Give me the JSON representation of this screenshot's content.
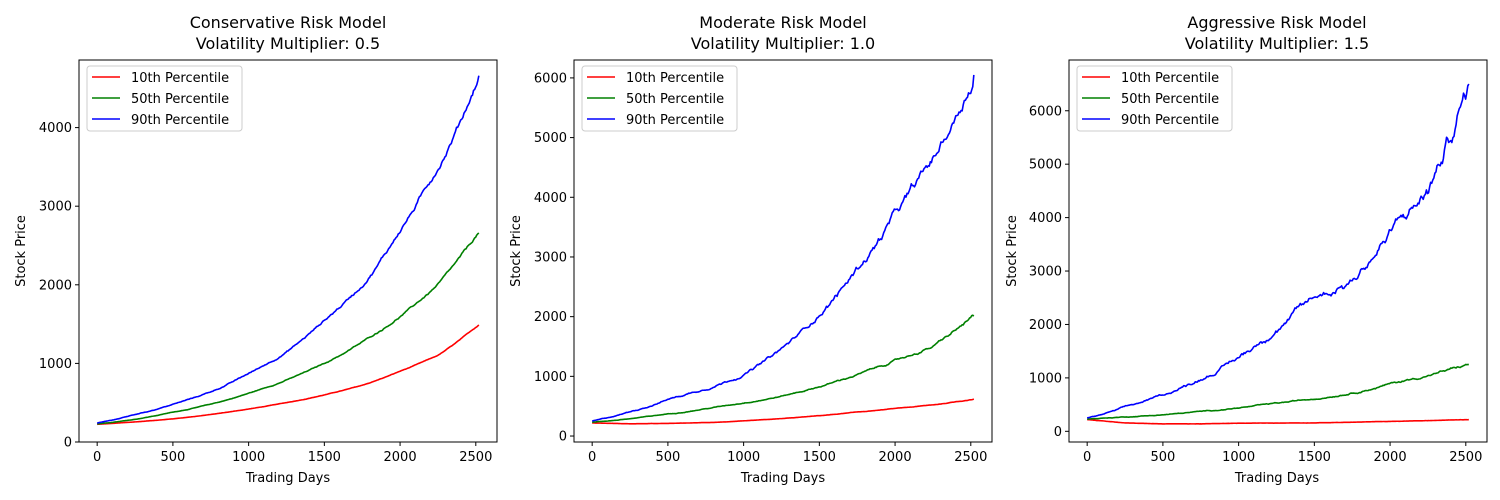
{
  "figure": {
    "x_label": "Trading Days",
    "y_label": "Stock Price"
  },
  "series_colors": {
    "p10": "#ff0000",
    "p50": "#008000",
    "p90": "#0000ff"
  },
  "chart_data": [
    {
      "type": "line",
      "title_line1": "Conservative Risk Model",
      "title_line2": "Volatility Multiplier: 0.5",
      "xlabel": "Trading Days",
      "ylabel": "Stock Price",
      "xlim": [
        -120,
        2640
      ],
      "ylim": [
        0,
        4860
      ],
      "xticks": [
        0,
        500,
        1000,
        1500,
        2000,
        2500
      ],
      "yticks": [
        0,
        1000,
        2000,
        3000,
        4000
      ],
      "noise": 0.5,
      "legend_position": "upper-left",
      "series": [
        {
          "name": "10th Percentile",
          "color": "#ff0000",
          "x": [
            0,
            250,
            500,
            750,
            1000,
            1250,
            1500,
            1750,
            2000,
            2250,
            2520
          ],
          "values": [
            225,
            255,
            295,
            350,
            420,
            500,
            600,
            720,
            900,
            1100,
            1490
          ]
        },
        {
          "name": "50th Percentile",
          "color": "#008000",
          "x": [
            0,
            250,
            500,
            750,
            1000,
            1250,
            1500,
            1750,
            2000,
            2250,
            2520
          ],
          "values": [
            230,
            290,
            380,
            480,
            620,
            790,
            1000,
            1270,
            1600,
            2000,
            2660
          ]
        },
        {
          "name": "90th Percentile",
          "color": "#0000ff",
          "x": [
            0,
            250,
            500,
            750,
            1000,
            1250,
            1500,
            1750,
            2000,
            2250,
            2520
          ],
          "values": [
            240,
            350,
            480,
            640,
            870,
            1150,
            1550,
            2000,
            2700,
            3500,
            4660
          ]
        }
      ]
    },
    {
      "type": "line",
      "title_line1": "Moderate Risk Model",
      "title_line2": "Volatility Multiplier: 1.0",
      "xlabel": "Trading Days",
      "ylabel": "Stock Price",
      "xlim": [
        -120,
        2640
      ],
      "ylim": [
        -100,
        6300
      ],
      "xticks": [
        0,
        500,
        1000,
        1500,
        2000,
        2500
      ],
      "yticks": [
        0,
        1000,
        2000,
        3000,
        4000,
        5000,
        6000
      ],
      "noise": 1.0,
      "legend_position": "upper-left",
      "series": [
        {
          "name": "10th Percentile",
          "color": "#ff0000",
          "x": [
            0,
            250,
            500,
            750,
            1000,
            1250,
            1500,
            1750,
            2000,
            2250,
            2520
          ],
          "values": [
            220,
            205,
            210,
            225,
            250,
            290,
            340,
            400,
            460,
            520,
            620
          ]
        },
        {
          "name": "50th Percentile",
          "color": "#008000",
          "x": [
            0,
            250,
            500,
            750,
            1000,
            1250,
            1500,
            1750,
            2000,
            2250,
            2520
          ],
          "values": [
            230,
            290,
            370,
            460,
            560,
            670,
            830,
            1030,
            1260,
            1500,
            2010
          ]
        },
        {
          "name": "90th Percentile",
          "color": "#0000ff",
          "x": [
            0,
            250,
            500,
            750,
            1000,
            1250,
            1500,
            1750,
            2000,
            2250,
            2520
          ],
          "values": [
            250,
            410,
            620,
            800,
            1040,
            1450,
            2050,
            2800,
            3700,
            4600,
            6050
          ]
        }
      ]
    },
    {
      "type": "line",
      "title_line1": "Aggressive Risk Model",
      "title_line2": "Volatility Multiplier: 1.5",
      "xlabel": "Trading Days",
      "ylabel": "Stock Price",
      "xlim": [
        -120,
        2640
      ],
      "ylim": [
        -200,
        6950
      ],
      "xticks": [
        0,
        500,
        1000,
        1500,
        2000,
        2500
      ],
      "yticks": [
        0,
        1000,
        2000,
        3000,
        4000,
        5000,
        6000
      ],
      "noise": 1.5,
      "legend_position": "upper-left",
      "series": [
        {
          "name": "10th Percentile",
          "color": "#ff0000",
          "x": [
            0,
            250,
            500,
            750,
            1000,
            1250,
            1500,
            1750,
            2000,
            2250,
            2520
          ],
          "values": [
            220,
            160,
            140,
            140,
            150,
            155,
            160,
            170,
            185,
            200,
            220
          ]
        },
        {
          "name": "50th Percentile",
          "color": "#008000",
          "x": [
            0,
            250,
            500,
            750,
            1000,
            1250,
            1500,
            1750,
            2000,
            2250,
            2520
          ],
          "values": [
            230,
            270,
            310,
            370,
            440,
            520,
            610,
            730,
            890,
            1050,
            1250
          ]
        },
        {
          "name": "90th Percentile",
          "color": "#0000ff",
          "x": [
            0,
            250,
            500,
            750,
            1000,
            1250,
            1500,
            1750,
            2000,
            2250,
            2520
          ],
          "values": [
            250,
            450,
            680,
            990,
            1380,
            1950,
            2500,
            2850,
            3700,
            4500,
            6500
          ]
        }
      ]
    }
  ]
}
